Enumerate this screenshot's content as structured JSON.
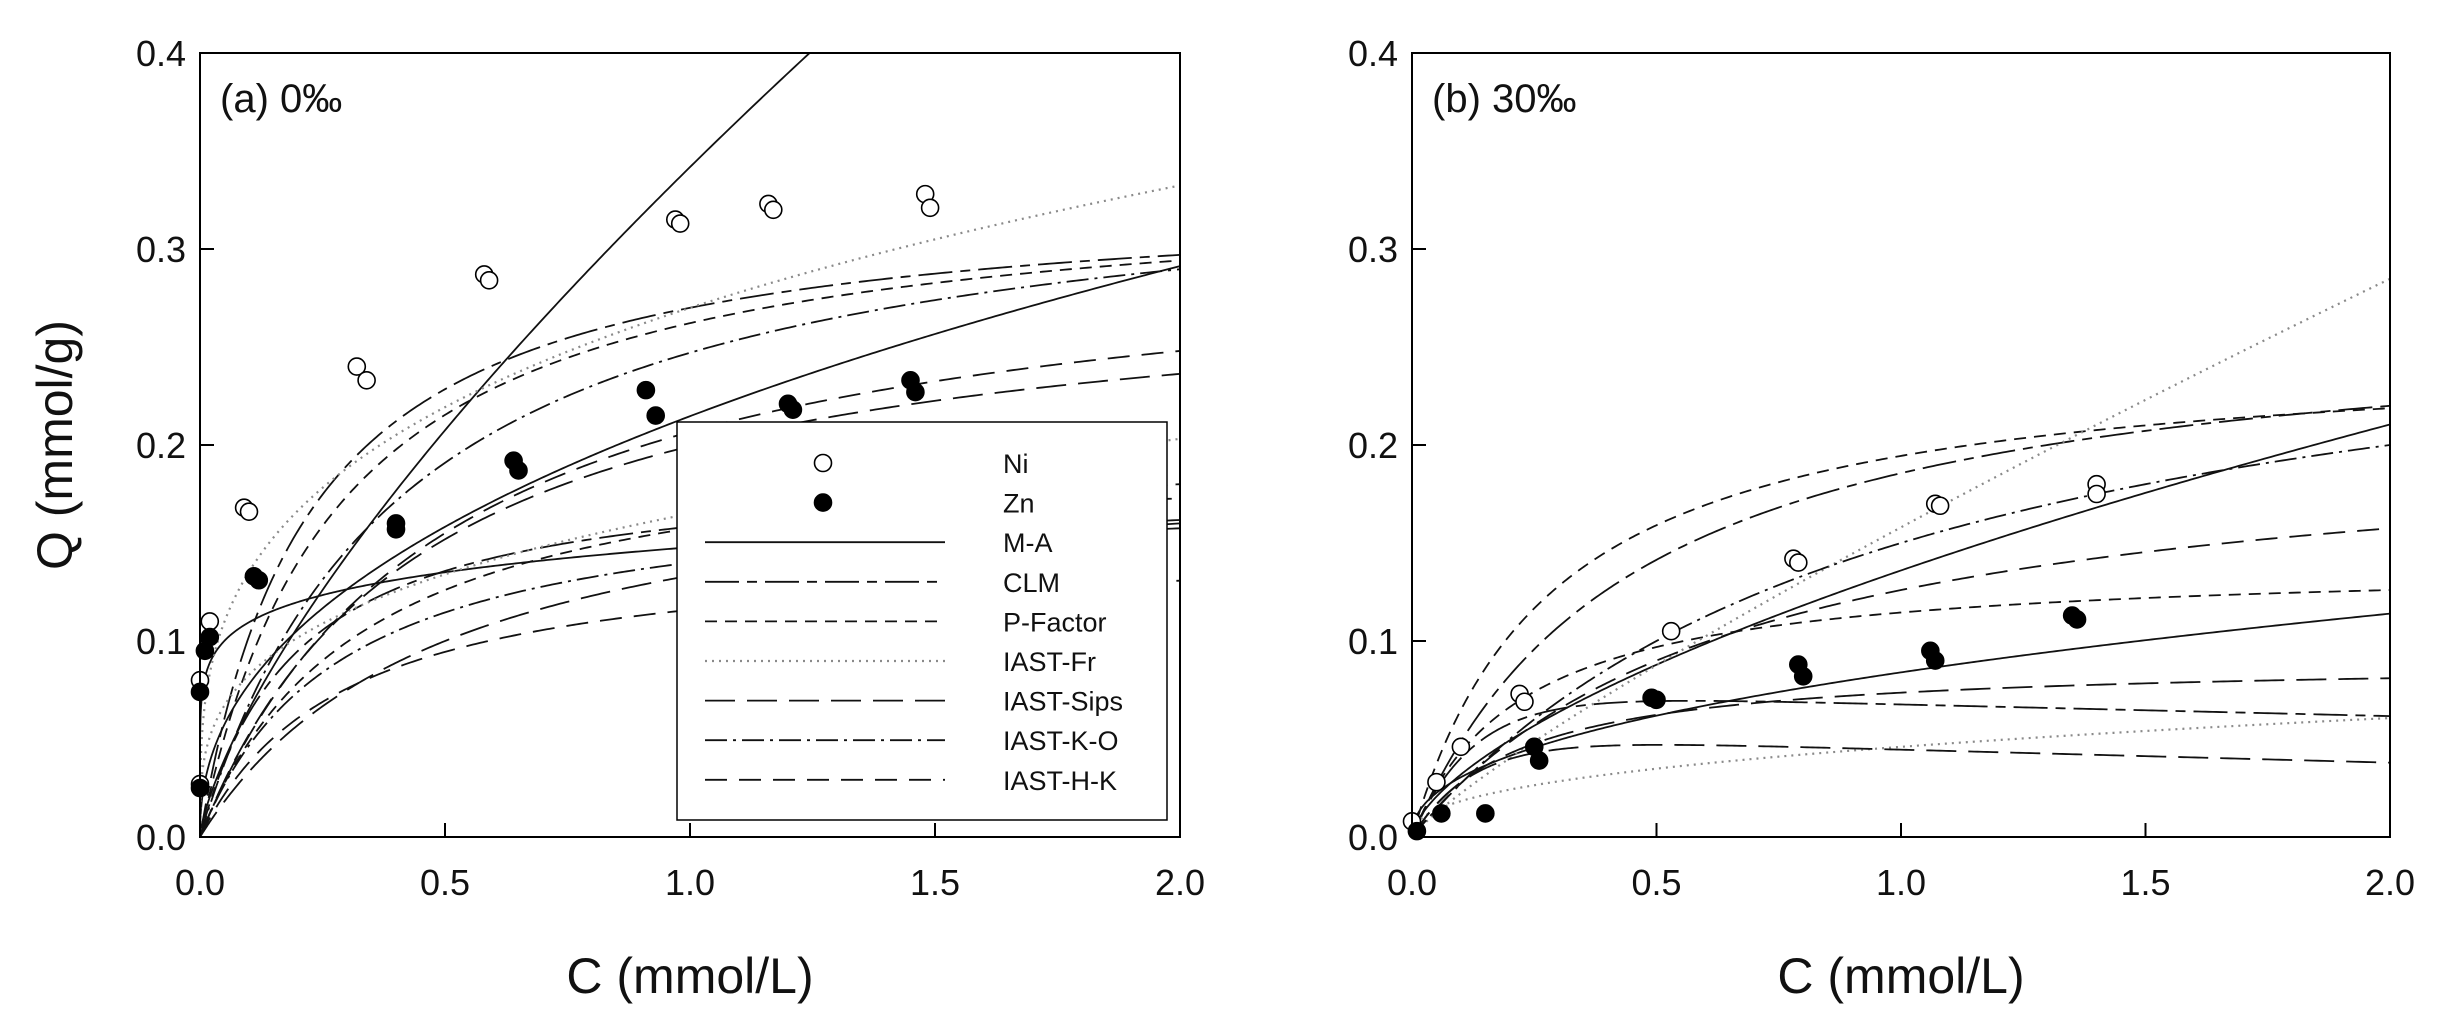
{
  "chart_data": [
    {
      "type": "scatter",
      "panel_label": "(a) 0‰",
      "xlabel": "C (mmol/L)",
      "ylabel": "Q (mmol/g)",
      "xlim": [
        0,
        2.0
      ],
      "ylim": [
        0,
        0.4
      ],
      "xticks": [
        "0.0",
        "0.5",
        "1.0",
        "1.5",
        "2.0"
      ],
      "yticks": [
        "0.0",
        "0.1",
        "0.2",
        "0.3",
        "0.4"
      ],
      "legend": {
        "placement": "center-right",
        "entries": [
          "Ni",
          "Zn",
          "M-A",
          "CLM",
          "P-Factor",
          "IAST-Fr",
          "IAST-Sips",
          "IAST-K-O",
          "IAST-H-K"
        ]
      },
      "points": [
        {
          "name": "Ni",
          "marker": "open-circle",
          "x": [
            0.0,
            0.02,
            0.09,
            0.1,
            0.32,
            0.34,
            0.58,
            0.59,
            0.97,
            0.98,
            1.16,
            1.17,
            1.48,
            1.49,
            0.0
          ],
          "y": [
            0.08,
            0.11,
            0.168,
            0.166,
            0.24,
            0.233,
            0.287,
            0.284,
            0.315,
            0.313,
            0.323,
            0.32,
            0.328,
            0.321,
            0.027
          ]
        },
        {
          "name": "Zn",
          "marker": "filled-circle",
          "x": [
            0.0,
            0.0,
            0.01,
            0.02,
            0.11,
            0.12,
            0.4,
            0.4,
            0.64,
            0.65,
            0.91,
            0.93,
            1.2,
            1.21,
            1.45,
            1.46
          ],
          "y": [
            0.025,
            0.074,
            0.095,
            0.102,
            0.133,
            0.131,
            0.16,
            0.157,
            0.192,
            0.187,
            0.228,
            0.215,
            0.221,
            0.218,
            0.233,
            0.227
          ]
        }
      ],
      "curves": [
        {
          "model": "M-A",
          "curve_type": "freundlich",
          "style": "solid",
          "k": 0.3418,
          "n": 0.72
        },
        {
          "model": "M-A",
          "curve_type": "freundlich",
          "style": "solid",
          "k": 0.2147,
          "n": 0.44
        },
        {
          "model": "M-A",
          "curve_type": "freundlich",
          "style": "solid",
          "k": 0.1478,
          "n": 0.13
        },
        {
          "model": "CLM",
          "curve_type": "langmuir",
          "style": "long-dash-short",
          "qmax": 0.33,
          "b": 4.5
        },
        {
          "model": "CLM",
          "curve_type": "langmuir",
          "style": "long-dash-short",
          "qmax": 0.19,
          "b": 5.0
        },
        {
          "model": "P-Factor",
          "curve_type": "langmuir",
          "style": "dash",
          "qmax": 0.335,
          "b": 3.6
        },
        {
          "model": "P-Factor",
          "curve_type": "langmuir",
          "style": "dash",
          "qmax": 0.21,
          "b": 3.0
        },
        {
          "model": "IAST-Fr",
          "curve_type": "freundlich",
          "style": "dot",
          "k": 0.27,
          "n": 0.3
        },
        {
          "model": "IAST-Fr",
          "curve_type": "freundlich",
          "style": "dot",
          "k": 0.165,
          "n": 0.3
        },
        {
          "model": "IAST-Sips",
          "curve_type": "langmuir",
          "style": "long-dash",
          "qmax": 0.29,
          "b": 2.2
        },
        {
          "model": "IAST-Sips",
          "curve_type": "langmuir",
          "style": "long-dash",
          "qmax": 0.2,
          "b": 2.0
        },
        {
          "model": "IAST-K-O",
          "curve_type": "langmuir",
          "style": "dash-dot",
          "qmax": 0.35,
          "b": 2.4
        },
        {
          "model": "IAST-K-O",
          "curve_type": "langmuir",
          "style": "dash-dot",
          "qmax": 0.18,
          "b": 3.5
        },
        {
          "model": "IAST-H-K",
          "curve_type": "langmuir",
          "style": "dash-medium",
          "qmax": 0.31,
          "b": 2.0
        },
        {
          "model": "IAST-H-K",
          "curve_type": "langmuir",
          "style": "dash-medium",
          "qmax": 0.15,
          "b": 3.4
        }
      ]
    },
    {
      "type": "scatter",
      "panel_label": "(b) 30‰",
      "xlabel": "C (mmol/L)",
      "ylabel": "",
      "xlim": [
        0,
        2.0
      ],
      "ylim": [
        0,
        0.4
      ],
      "xticks": [
        "0.0",
        "0.5",
        "1.0",
        "1.5",
        "2.0"
      ],
      "yticks": [
        "0.0",
        "0.1",
        "0.2",
        "0.3",
        "0.4"
      ],
      "points": [
        {
          "name": "Ni",
          "marker": "open-circle",
          "x": [
            0.0,
            0.05,
            0.1,
            0.22,
            0.23,
            0.53,
            0.78,
            0.79,
            1.07,
            1.08,
            1.4,
            1.4
          ],
          "y": [
            0.008,
            0.028,
            0.046,
            0.073,
            0.069,
            0.105,
            0.142,
            0.14,
            0.17,
            0.169,
            0.18,
            0.175
          ]
        },
        {
          "name": "Zn",
          "marker": "filled-circle",
          "x": [
            0.01,
            0.06,
            0.15,
            0.25,
            0.26,
            0.49,
            0.5,
            0.79,
            0.8,
            1.06,
            1.07,
            1.35,
            1.36
          ],
          "y": [
            0.003,
            0.012,
            0.012,
            0.046,
            0.039,
            0.071,
            0.07,
            0.088,
            0.082,
            0.095,
            0.09,
            0.113,
            0.111
          ]
        }
      ],
      "curves": [
        {
          "model": "M-A",
          "curve_type": "freundlich",
          "style": "solid",
          "k": 0.136,
          "n": 0.63
        },
        {
          "model": "M-A",
          "curve_type": "freundlich",
          "style": "solid",
          "k": 0.084,
          "n": 0.44
        },
        {
          "model": "CLM",
          "curve_type": "langmuir",
          "style": "long-dash-short",
          "qmax": 0.27,
          "b": 2.2
        },
        {
          "model": "CLM",
          "curve_type": "pseudo-peak",
          "style": "long-dash-short",
          "a": 0.23,
          "b": 8.0,
          "c": 0.5
        },
        {
          "model": "P-Factor",
          "curve_type": "langmuir",
          "style": "dash",
          "qmax": 0.25,
          "b": 3.5
        },
        {
          "model": "P-Factor",
          "curve_type": "langmuir",
          "style": "dash",
          "qmax": 0.14,
          "b": 4.5
        },
        {
          "model": "IAST-Fr",
          "curve_type": "freundlich",
          "style": "dot",
          "k": 0.158,
          "n": 0.85
        },
        {
          "model": "IAST-Fr",
          "curve_type": "freundlich",
          "style": "dot",
          "k": 0.046,
          "n": 0.4
        },
        {
          "model": "IAST-Sips",
          "curve_type": "langmuir",
          "style": "long-dash",
          "qmax": 0.09,
          "b": 4.5
        },
        {
          "model": "IAST-Sips",
          "curve_type": "pseudo-peak",
          "style": "long-dash",
          "a": 0.16,
          "b": 8.0,
          "c": 0.8
        },
        {
          "model": "IAST-K-O",
          "curve_type": "langmuir",
          "style": "dash-dot",
          "qmax": 0.3,
          "b": 1.0
        },
        {
          "model": "IAST-H-K",
          "curve_type": "langmuir",
          "style": "dash-medium",
          "qmax": 0.21,
          "b": 1.5
        }
      ]
    }
  ]
}
